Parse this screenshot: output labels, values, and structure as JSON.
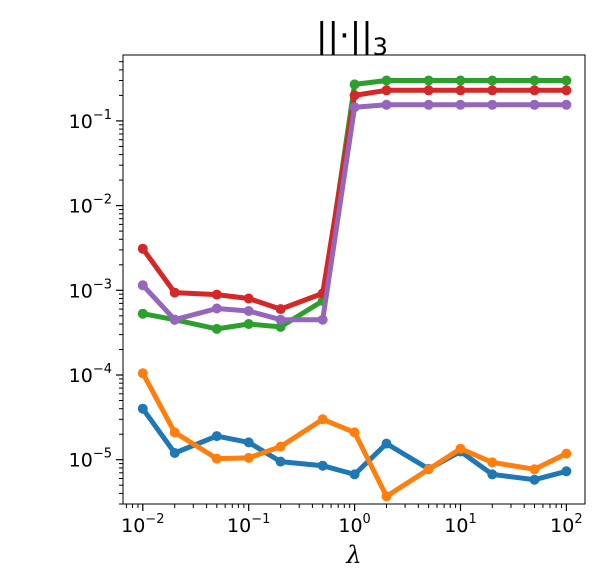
{
  "chart_data": {
    "type": "line",
    "title": "||·||",
    "title_sub": "3",
    "xlabel": "λ",
    "ylabel": "",
    "xscale": "log",
    "yscale": "log",
    "xlim": [
      0.0065,
      150
    ],
    "ylim": [
      3e-06,
      0.6
    ],
    "grid": false,
    "legend": "none",
    "x": [
      0.01,
      0.02,
      0.05,
      0.1,
      0.2,
      0.5,
      1,
      2,
      5,
      10,
      20,
      50,
      100
    ],
    "x_ticks": [
      {
        "value": 0.01,
        "base": "10",
        "exp": "−2"
      },
      {
        "value": 0.1,
        "base": "10",
        "exp": "−1"
      },
      {
        "value": 1,
        "base": "10",
        "exp": "0"
      },
      {
        "value": 10,
        "base": "10",
        "exp": "1"
      },
      {
        "value": 100,
        "base": "10",
        "exp": "2"
      }
    ],
    "y_ticks": [
      {
        "value": 1e-05,
        "base": "10",
        "exp": "−5"
      },
      {
        "value": 0.0001,
        "base": "10",
        "exp": "−4"
      },
      {
        "value": 0.001,
        "base": "10",
        "exp": "−3"
      },
      {
        "value": 0.01,
        "base": "10",
        "exp": "−2"
      },
      {
        "value": 0.1,
        "base": "10",
        "exp": "−1"
      }
    ],
    "series": [
      {
        "color": "#1f77b4",
        "values": [
          4e-05,
          1.2e-05,
          1.9e-05,
          1.6e-05,
          9.5e-06,
          8.5e-06,
          6.7e-06,
          1.55e-05,
          7.8e-06,
          1.25e-05,
          6.7e-06,
          5.8e-06,
          7.3e-06
        ]
      },
      {
        "color": "#ff7f0e",
        "values": [
          0.000105,
          2.1e-05,
          1.03e-05,
          1.05e-05,
          1.43e-05,
          3e-05,
          2.1e-05,
          3.7e-06,
          7.7e-06,
          1.35e-05,
          9.3e-06,
          7.7e-06,
          1.18e-05
        ]
      },
      {
        "color": "#2ca02c",
        "values": [
          0.00053,
          0.00045,
          0.00035,
          0.0004,
          0.00037,
          0.00075,
          0.27,
          0.3,
          0.3,
          0.3,
          0.3,
          0.3,
          0.3
        ]
      },
      {
        "color": "#d62728",
        "values": [
          0.0031,
          0.00094,
          0.00089,
          0.0008,
          0.0006,
          0.00092,
          0.2,
          0.23,
          0.23,
          0.23,
          0.23,
          0.23,
          0.23
        ]
      },
      {
        "color": "#9467bd",
        "values": [
          0.00115,
          0.00045,
          0.00061,
          0.00057,
          0.00045,
          0.00045,
          0.145,
          0.155,
          0.155,
          0.155,
          0.155,
          0.155,
          0.155
        ]
      }
    ]
  }
}
